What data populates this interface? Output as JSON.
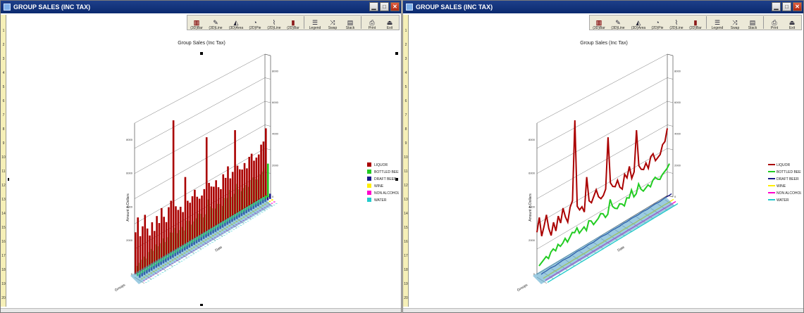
{
  "windows": [
    {
      "title": "GROUP SALES (INC TAX)",
      "mode": "bar",
      "toolbar": [
        "(3D)Bar",
        "(3D)Line",
        "(3D)Area",
        "(2D)Pie",
        "(2D)Line",
        "(2D)Bar",
        "Legend",
        "Swap",
        "Stack",
        "Print",
        "Exit"
      ],
      "chart_data": {
        "type": "bar",
        "title": "Group Sales (Inc Tax)",
        "ylabel": "Amount in Dollars",
        "xlabel": "Date",
        "zlabel": "Groups",
        "yticks": [
          "0",
          "2000",
          "4000",
          "6000",
          "8000"
        ],
        "ylim": [
          0,
          9000
        ],
        "legend_position": "right",
        "series": [
          {
            "name": "LIQUOR",
            "color": "#aa0000",
            "values": [
              2500,
              3300,
              2100,
              2600,
              3200,
              2300,
              1800,
              2500,
              1900,
              2700,
              2200,
              3000,
              2400,
              2000,
              2800,
              3100,
              7800,
              2600,
              2300,
              2400,
              2000,
              4000,
              2500,
              2300,
              2600,
              2900,
              2400,
              2200,
              2300,
              2600,
              5600,
              2800,
              2500,
              2400,
              2700,
              2200,
              2000,
              2800,
              2500,
              3100,
              2300,
              2600,
              5000,
              2800,
              2500,
              2400,
              2700,
              2300,
              2900,
              3000,
              2500,
              2600,
              2700,
              3200,
              3300,
              4000
            ]
          },
          {
            "name": "BOTTLED BEER",
            "color": "#22cc22",
            "values": [
              600,
              700,
              800,
              900,
              700,
              1000,
              1100,
              900,
              1200,
              1000,
              1100,
              1300,
              1000,
              1200,
              1400,
              1300,
              1500,
              1100,
              1200,
              1300,
              1000,
              1500,
              1400,
              1100,
              1200,
              1300,
              1500,
              1400,
              1100,
              1200,
              2000,
              1500,
              1300,
              1200,
              1400,
              1300,
              1100,
              1500,
              1400,
              1800,
              1300,
              1400,
              1900,
              1500,
              1300,
              1400,
              1500,
              1300,
              1600,
              1700,
              1500,
              1400,
              1600,
              1700,
              1800,
              2000
            ]
          },
          {
            "name": "DRAFT BEER",
            "color": "#1a1a88",
            "values": [
              200,
              220,
              210,
              230,
              240,
              220,
              200,
              230,
              240,
              260,
              250,
              230,
              220,
              240,
              250,
              270,
              260,
              240,
              230,
              250,
              260,
              240,
              230,
              250,
              260,
              280,
              270,
              250,
              240,
              260,
              270,
              260,
              250,
              240,
              260,
              270,
              250,
              260,
              280,
              270,
              260,
              250,
              270,
              280,
              260,
              250,
              270,
              280,
              290,
              270,
              260,
              280,
              290,
              300,
              290,
              310
            ]
          },
          {
            "name": "WINE",
            "color": "#ffee00",
            "values": [
              60,
              70,
              65,
              75,
              70,
              80,
              60,
              70,
              75,
              80,
              70,
              65,
              75,
              80,
              70,
              75,
              80,
              70,
              65,
              75,
              80,
              70,
              75,
              80,
              70,
              65,
              75,
              80,
              70,
              75,
              80,
              70,
              65,
              75,
              80,
              70,
              75,
              80,
              70,
              65,
              75,
              80,
              70,
              75,
              80,
              70,
              65,
              75,
              80,
              70,
              75,
              80,
              70,
              65,
              75,
              80
            ]
          },
          {
            "name": "NON ALCOHOLI",
            "color": "#ff00cc",
            "values": [
              40,
              45,
              42,
              48,
              44,
              46,
              40,
              45,
              47,
              43,
              45,
              48,
              42,
              44,
              46,
              48,
              45,
              43,
              44,
              46,
              48,
              45,
              43,
              44,
              46,
              48,
              45,
              43,
              44,
              46,
              48,
              45,
              43,
              44,
              46,
              48,
              45,
              43,
              44,
              46,
              48,
              45,
              43,
              44,
              46,
              48,
              45,
              43,
              44,
              46,
              48,
              45,
              43,
              44,
              46,
              48
            ]
          },
          {
            "name": "WATER",
            "color": "#22cccc",
            "values": [
              20,
              22,
              21,
              23,
              22,
              24,
              20,
              22,
              23,
              21,
              22,
              24,
              21,
              22,
              23,
              24,
              22,
              21,
              22,
              23,
              24,
              22,
              21,
              22,
              23,
              24,
              22,
              21,
              22,
              23,
              24,
              22,
              21,
              22,
              23,
              24,
              22,
              21,
              22,
              23,
              24,
              22,
              21,
              22,
              23,
              24,
              22,
              21,
              22,
              23,
              24,
              22,
              21,
              22,
              23,
              24
            ]
          }
        ]
      }
    },
    {
      "title": "GROUP SALES (INC TAX)",
      "mode": "line",
      "toolbar": [
        "(3D)Bar",
        "(3D)Line",
        "(3D)Area",
        "(2D)Pie",
        "(2D)Line",
        "(2D)Bar",
        "Legend",
        "Swap",
        "Stack",
        "Print",
        "Exit"
      ],
      "chart_data": {
        "type": "line",
        "title": "Group Sales (Inc Tax)",
        "ylabel": "Amount in Dollars",
        "xlabel": "Date",
        "zlabel": "Groups",
        "yticks": [
          "0",
          "2000",
          "4000",
          "6000",
          "8000"
        ],
        "ylim": [
          0,
          9000
        ],
        "legend_position": "right",
        "series": [
          {
            "name": "LIQUOR",
            "color": "#aa0000",
            "values": [
              2500,
              3300,
              2100,
              2600,
              3200,
              2300,
              1800,
              2500,
              1900,
              2700,
              2200,
              3000,
              2400,
              2000,
              2800,
              3100,
              7800,
              2600,
              2300,
              2400,
              2000,
              4000,
              2500,
              2300,
              2600,
              2900,
              2400,
              2200,
              2300,
              2600,
              5600,
              2800,
              2500,
              2400,
              2700,
              2200,
              2000,
              2800,
              2500,
              3100,
              2300,
              2600,
              5000,
              2800,
              2500,
              2400,
              2700,
              2300,
              2900,
              3000,
              2500,
              2600,
              2700,
              3200,
              3300,
              4000
            ]
          },
          {
            "name": "BOTTLED BEER",
            "color": "#22cc22",
            "values": [
              600,
              700,
              800,
              900,
              700,
              1000,
              1100,
              900,
              1200,
              1000,
              1100,
              1300,
              1000,
              1200,
              1400,
              1300,
              1500,
              1100,
              1200,
              1300,
              1000,
              1500,
              1400,
              1100,
              1200,
              1300,
              1500,
              1400,
              1100,
              1200,
              2000,
              1500,
              1300,
              1200,
              1400,
              1300,
              1100,
              1500,
              1400,
              1800,
              1300,
              1400,
              1900,
              1500,
              1300,
              1400,
              1500,
              1300,
              1600,
              1700,
              1500,
              1400,
              1600,
              1700,
              1800,
              2000
            ]
          },
          {
            "name": "DRAFT BEER",
            "color": "#1a1a88",
            "values": [
              200,
              220,
              210,
              230,
              240,
              220,
              200,
              230,
              240,
              260,
              250,
              230,
              220,
              240,
              250,
              270,
              260,
              240,
              230,
              250,
              260,
              240,
              230,
              250,
              260,
              280,
              270,
              250,
              240,
              260,
              270,
              260,
              250,
              240,
              260,
              270,
              250,
              260,
              280,
              270,
              260,
              250,
              270,
              280,
              260,
              250,
              270,
              280,
              290,
              270,
              260,
              280,
              290,
              300,
              290,
              310
            ]
          },
          {
            "name": "WINE",
            "color": "#ffee00",
            "values": [
              60,
              70,
              65,
              75,
              70,
              80,
              60,
              70,
              75,
              80,
              70,
              65,
              75,
              80,
              70,
              75,
              80,
              70,
              65,
              75,
              80,
              70,
              75,
              80,
              70,
              65,
              75,
              80,
              70,
              75,
              80,
              70,
              65,
              75,
              80,
              70,
              75,
              80,
              70,
              65,
              75,
              80,
              70,
              75,
              80,
              70,
              65,
              75,
              80,
              70,
              75,
              80,
              70,
              65,
              75,
              80
            ]
          },
          {
            "name": "NON ALCOHOLI",
            "color": "#ff00cc",
            "values": [
              40,
              45,
              42,
              48,
              44,
              46,
              40,
              45,
              47,
              43,
              45,
              48,
              42,
              44,
              46,
              48,
              45,
              43,
              44,
              46,
              48,
              45,
              43,
              44,
              46,
              48,
              45,
              43,
              44,
              46,
              48,
              45,
              43,
              44,
              46,
              48,
              45,
              43,
              44,
              46,
              48,
              45,
              43,
              44,
              46,
              48,
              45,
              43,
              44,
              46,
              48,
              45,
              43,
              44,
              46,
              48
            ]
          },
          {
            "name": "WATER",
            "color": "#22cccc",
            "values": [
              20,
              22,
              21,
              23,
              22,
              24,
              20,
              22,
              23,
              21,
              22,
              24,
              21,
              22,
              23,
              24,
              22,
              21,
              22,
              23,
              24,
              22,
              21,
              22,
              23,
              24,
              22,
              21,
              22,
              23,
              24,
              22,
              21,
              22,
              23,
              24,
              22,
              21,
              22,
              23,
              24,
              22,
              21,
              22,
              23,
              24,
              22,
              21,
              22,
              23,
              24,
              22,
              21,
              22,
              23,
              24
            ]
          }
        ]
      }
    }
  ]
}
